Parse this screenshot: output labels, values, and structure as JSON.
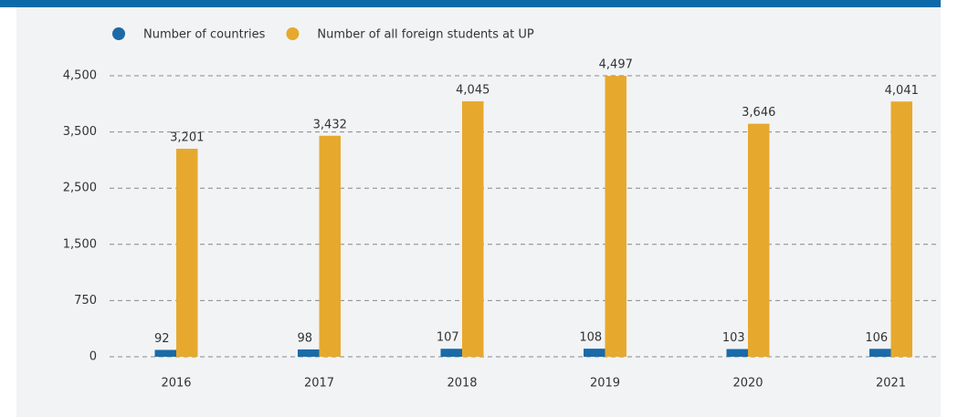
{
  "chart_data": {
    "type": "bar",
    "categories": [
      "2016",
      "2017",
      "2018",
      "2019",
      "2020",
      "2021"
    ],
    "series": [
      {
        "name": "Number of countries",
        "color": "#1a6aa8",
        "values": [
          92,
          98,
          107,
          108,
          103,
          106
        ]
      },
      {
        "name": "Number of all foreign students at UP",
        "color": "#e6a92d",
        "values": [
          3201,
          3432,
          4045,
          4497,
          3646,
          4041
        ],
        "value_labels": [
          "3,201",
          "3,432",
          "4,045",
          "4,497",
          "3,646",
          "4,041"
        ]
      }
    ],
    "ylim": [
      0,
      4500
    ],
    "yticks": [
      0,
      750,
      {
        "value": 1500,
        "label": "1,500"
      },
      {
        "value": 2500,
        "label": "2,500"
      },
      {
        "value": 3500,
        "label": "3,500"
      },
      {
        "value": 4500,
        "label": "4,500"
      }
    ],
    "grid": true,
    "legend": "top"
  }
}
